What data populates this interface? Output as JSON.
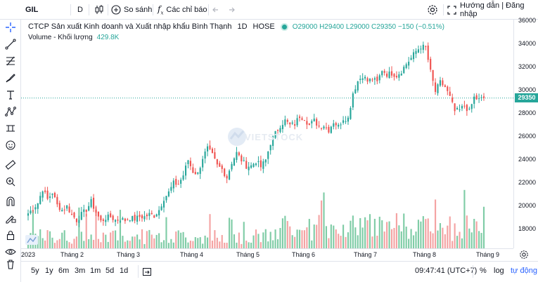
{
  "toolbar": {
    "symbol": "GIL",
    "interval": "D",
    "compare_label": "So sánh",
    "indicators_label": "Các chỉ báo",
    "help_login_label": "Hướng dẫn | Đăng nhập"
  },
  "legend": {
    "title": "CTCP Sản xuất Kinh doanh và Xuất nhập khẩu Bình Thạnh",
    "timeframe": "1D",
    "exchange": "HOSE",
    "ohlc": "O29000  H29400  L29000  C29350  −150 (−0.51%)",
    "volume_label": "Volume - Khối lượng",
    "volume_value": "429.8K"
  },
  "watermark": "VIETSTOCK",
  "colors": {
    "up": "#26a69a",
    "down": "#ef5350",
    "up_vol": "#7fcca6",
    "down_vol": "#f4a3a3",
    "accent": "#2962ff"
  },
  "chart_data": {
    "type": "candlestick",
    "y_ticks": [
      "36000",
      "34000",
      "32000",
      "30000",
      "28000",
      "26000",
      "24000",
      "22000",
      "20000",
      "18000"
    ],
    "ylim": [
      16800,
      36000
    ],
    "last_price_label": "29350",
    "last_price": 29350,
    "x_ticks": [
      "2023",
      "Tháng 2",
      "Tháng 3",
      "Tháng 4",
      "Tháng 5",
      "Tháng 6",
      "Tháng 7",
      "Tháng 8",
      "Tháng 9"
    ],
    "close_path": [
      19400,
      19800,
      20300,
      21500,
      20600,
      21200,
      20100,
      19700,
      20000,
      19300,
      18800,
      19300,
      19700,
      20400,
      19500,
      18700,
      19000,
      19100,
      18800,
      18900,
      18800,
      19000,
      18900,
      19100,
      19100,
      19300,
      19200,
      19700,
      20700,
      21200,
      22000,
      21900,
      22700,
      24000,
      23000,
      22800,
      24200,
      25000,
      24400,
      23500,
      23200,
      22500,
      23800,
      24600,
      24000,
      23500,
      23500,
      23900,
      23400,
      24000,
      25500,
      26300,
      27000,
      27400,
      27000,
      27100,
      27800,
      27600,
      27000,
      27400,
      26900,
      27000,
      26600,
      27300,
      26900,
      27600,
      27600,
      29800,
      30800,
      31300,
      30800,
      31000,
      30700,
      31800,
      31400,
      31500,
      31300,
      31700,
      32300,
      32800,
      33400,
      33800,
      33700,
      31600,
      29900,
      30700,
      30300,
      29400,
      28200,
      28300,
      28700,
      28200,
      29400,
      29200,
      29350
    ],
    "volume_label": "Volume - Khối lượng"
  },
  "bottom": {
    "ranges": [
      "5y",
      "1y",
      "6m",
      "3m",
      "1m",
      "5d",
      "1d"
    ],
    "time": "09:47:41 (UTC+7)",
    "pct_label": "%",
    "log_label": "log",
    "auto_label": "tự động"
  }
}
